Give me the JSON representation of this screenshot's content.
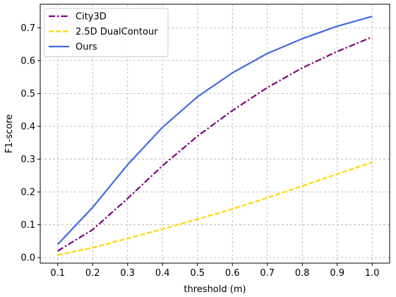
{
  "chart_data": {
    "type": "line",
    "title": "",
    "xlabel": "threshold (m)",
    "ylabel": "F1-score",
    "x": [
      0.1,
      0.2,
      0.3,
      0.4,
      0.5,
      0.6,
      0.7,
      0.8,
      0.9,
      1.0
    ],
    "xlim": [
      0.05,
      1.05
    ],
    "ylim": [
      -0.017,
      0.772
    ],
    "xticks": [
      "0.1",
      "0.2",
      "0.3",
      "0.4",
      "0.5",
      "0.6",
      "0.7",
      "0.8",
      "0.9",
      "1.0"
    ],
    "yticks": [
      "0.0",
      "0.1",
      "0.2",
      "0.3",
      "0.4",
      "0.5",
      "0.6",
      "0.7"
    ],
    "grid": true,
    "legend_position": "upper-left",
    "series": [
      {
        "name": "City3D",
        "color": "#800080",
        "dash": "dashdot",
        "values": [
          0.02,
          0.085,
          0.18,
          0.28,
          0.37,
          0.448,
          0.518,
          0.578,
          0.628,
          0.672
        ]
      },
      {
        "name": "2.5D DualContour",
        "color": "#FFD700",
        "dash": "dashed",
        "values": [
          0.008,
          0.03,
          0.058,
          0.087,
          0.117,
          0.148,
          0.182,
          0.218,
          0.255,
          0.29
        ]
      },
      {
        "name": "Ours",
        "color": "#4169E1",
        "dash": "solid",
        "values": [
          0.04,
          0.153,
          0.283,
          0.397,
          0.49,
          0.563,
          0.622,
          0.667,
          0.705,
          0.735
        ]
      }
    ]
  }
}
